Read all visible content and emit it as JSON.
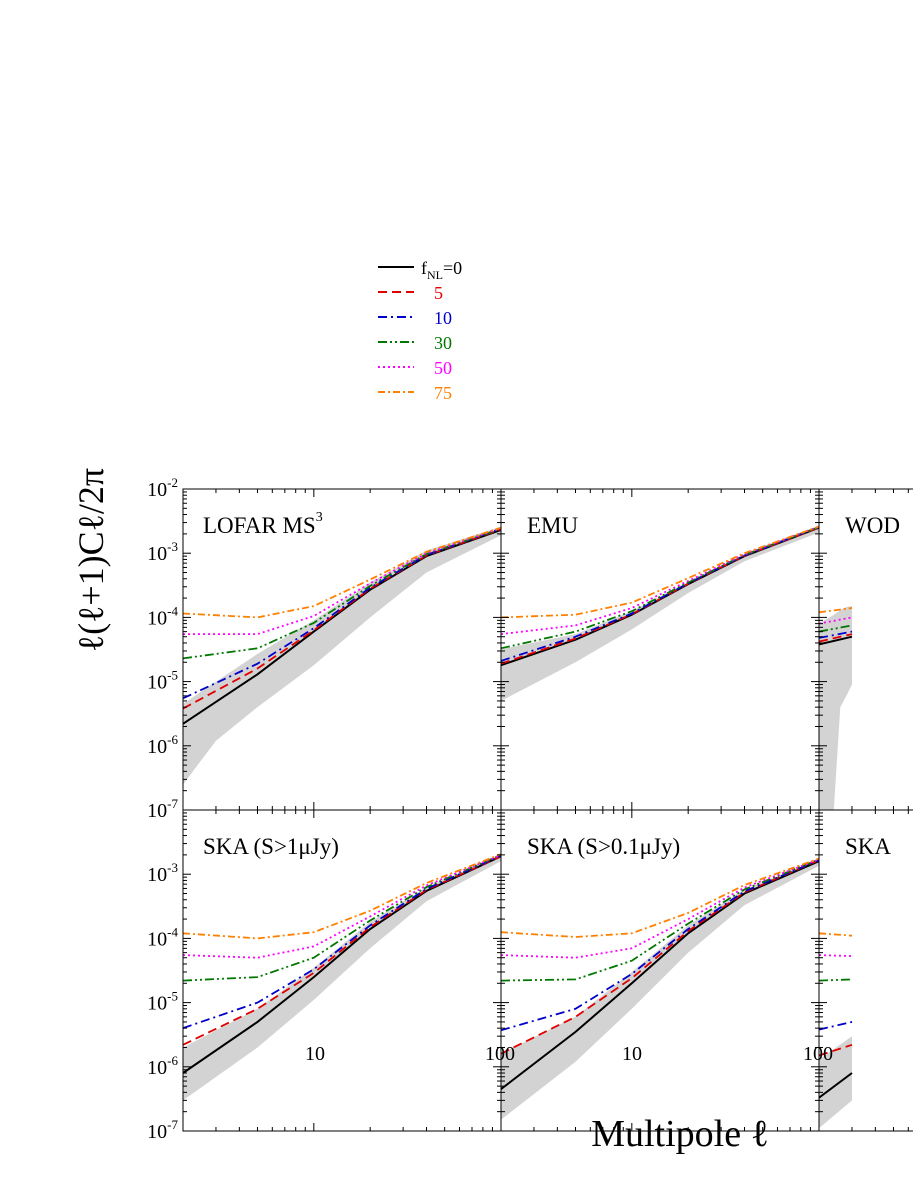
{
  "chart_data": {
    "type": "line",
    "xscale": "log",
    "yscale": "log",
    "xlim": [
      2,
      100
    ],
    "ylim": [
      1e-07,
      0.01
    ],
    "xlabel": "Multipole ℓ",
    "ylabel": "ℓ(ℓ+1)Cℓ/2π",
    "x_tick_labels": [
      "10",
      "100"
    ],
    "y_tick_labels": [
      {
        "base": "10",
        "exp": "-7"
      },
      {
        "base": "10",
        "exp": "-6"
      },
      {
        "base": "10",
        "exp": "-5"
      },
      {
        "base": "10",
        "exp": "-4"
      },
      {
        "base": "10",
        "exp": "-3"
      },
      {
        "base": "10",
        "exp": "-2"
      }
    ],
    "colors": {
      "fNL_0": "#000000",
      "fNL_5": "#e00000",
      "fNL_10": "#0000cc",
      "fNL_30": "#007700",
      "fNL_50": "#ff00ff",
      "fNL_75": "#ff8000",
      "band": "#d3d3d3"
    },
    "legend": {
      "prefix": "f",
      "prefix_sub": "NL",
      "entries": [
        {
          "key": "fNL_0",
          "label": "=0",
          "style": "solid"
        },
        {
          "key": "fNL_5",
          "label": "5",
          "style": "dashed"
        },
        {
          "key": "fNL_10",
          "label": "10",
          "style": "dashdot"
        },
        {
          "key": "fNL_30",
          "label": "30",
          "style": "dashdotdot"
        },
        {
          "key": "fNL_50",
          "label": "50",
          "style": "dotted"
        },
        {
          "key": "fNL_75",
          "label": "75",
          "style": "dashdot2"
        }
      ]
    },
    "panels": [
      {
        "id": "lofar",
        "title": "LOFAR MS",
        "title_sup": "3",
        "row": 0,
        "col": 0,
        "series": [
          {
            "key": "fNL_0",
            "l": [
              2,
              5,
              10,
              20,
              40,
              100
            ],
            "y": [
              2.2e-06,
              1.3e-05,
              6e-05,
              0.00027,
              0.0009,
              0.0023
            ]
          },
          {
            "key": "fNL_5",
            "l": [
              2,
              5,
              10,
              20,
              40,
              100
            ],
            "y": [
              3.8e-06,
              1.6e-05,
              6.3e-05,
              0.00028,
              0.00092,
              0.00235
            ]
          },
          {
            "key": "fNL_10",
            "l": [
              2,
              5,
              10,
              20,
              40,
              100
            ],
            "y": [
              5.5e-06,
              1.9e-05,
              6.8e-05,
              0.00029,
              0.00094,
              0.0024
            ]
          },
          {
            "key": "fNL_30",
            "l": [
              2,
              5,
              10,
              20,
              40,
              100
            ],
            "y": [
              2.3e-05,
              3.3e-05,
              8.2e-05,
              0.00031,
              0.00097,
              0.0024
            ]
          },
          {
            "key": "fNL_50",
            "l": [
              2,
              5,
              10,
              20,
              40,
              100
            ],
            "y": [
              5.5e-05,
              5.5e-05,
              0.000105,
              0.00034,
              0.001,
              0.00245
            ]
          },
          {
            "key": "fNL_75",
            "l": [
              2,
              5,
              10,
              20,
              40,
              100
            ],
            "y": [
              0.000115,
              0.0001,
              0.00015,
              0.00039,
              0.00105,
              0.0025
            ]
          }
        ],
        "band": {
          "l": [
            2,
            3,
            5,
            10,
            20,
            40,
            100
          ],
          "upper": [
            4.5e-06,
            1e-05,
            2.7e-05,
            9e-05,
            0.00035,
            0.0011,
            0.0026
          ],
          "lower": [
            2.5e-07,
            1.2e-06,
            4e-06,
            1.8e-05,
            0.0001,
            0.0005,
            0.0019
          ]
        }
      },
      {
        "id": "emu",
        "title": "EMU",
        "row": 0,
        "col": 1,
        "series": [
          {
            "key": "fNL_0",
            "l": [
              2,
              5,
              10,
              20,
              40,
              100
            ],
            "y": [
              1.8e-05,
              4.5e-05,
              0.00011,
              0.00033,
              0.0009,
              0.0025
            ]
          },
          {
            "key": "fNL_5",
            "l": [
              2,
              5,
              10,
              20,
              40,
              100
            ],
            "y": [
              1.9e-05,
              4.7e-05,
              0.000112,
              0.000335,
              0.00091,
              0.0025
            ]
          },
          {
            "key": "fNL_10",
            "l": [
              2,
              5,
              10,
              20,
              40,
              100
            ],
            "y": [
              2.1e-05,
              5e-05,
              0.000115,
              0.00034,
              0.00092,
              0.00255
            ]
          },
          {
            "key": "fNL_30",
            "l": [
              2,
              5,
              10,
              20,
              40,
              100
            ],
            "y": [
              3.3e-05,
              6e-05,
              0.000125,
              0.00035,
              0.00094,
              0.00255
            ]
          },
          {
            "key": "fNL_50",
            "l": [
              2,
              5,
              10,
              20,
              40,
              100
            ],
            "y": [
              5.5e-05,
              7.5e-05,
              0.00014,
              0.00037,
              0.00096,
              0.0026
            ]
          },
          {
            "key": "fNL_75",
            "l": [
              2,
              5,
              10,
              20,
              40,
              100
            ],
            "y": [
              0.0001,
              0.00011,
              0.00017,
              0.00041,
              0.001,
              0.0026
            ]
          }
        ],
        "band": {
          "l": [
            2,
            5,
            10,
            20,
            40,
            100
          ],
          "upper": [
            3.2e-05,
            5.5e-05,
            0.000125,
            0.00036,
            0.00098,
            0.0027
          ],
          "lower": [
            5e-06,
            2e-05,
            6.5e-05,
            0.00024,
            0.00075,
            0.0021
          ]
        }
      },
      {
        "id": "wodfs",
        "title": "WOD",
        "row": 0,
        "col": 2,
        "series": [
          {
            "key": "fNL_0",
            "l": [
              2,
              3
            ],
            "y": [
              3.8e-05,
              5e-05
            ]
          },
          {
            "key": "fNL_5",
            "l": [
              2,
              3
            ],
            "y": [
              4.2e-05,
              5.5e-05
            ]
          },
          {
            "key": "fNL_10",
            "l": [
              2,
              3
            ],
            "y": [
              4.8e-05,
              6e-05
            ]
          },
          {
            "key": "fNL_30",
            "l": [
              2,
              3
            ],
            "y": [
              6e-05,
              7.5e-05
            ]
          },
          {
            "key": "fNL_50",
            "l": [
              2,
              3
            ],
            "y": [
              8e-05,
              0.0001
            ]
          },
          {
            "key": "fNL_75",
            "l": [
              2,
              3
            ],
            "y": [
              0.00012,
              0.00014
            ]
          }
        ],
        "band": {
          "l": [
            2,
            2.4,
            2.6,
            2.8,
            3
          ],
          "upper": [
            8e-05,
            0.00011,
            0.00013,
            0.000145,
            0.00015
          ],
          "lower": [
            1e-07,
            1e-07,
            4e-06,
            6e-06,
            9e-06
          ]
        }
      },
      {
        "id": "ska1",
        "title": "SKA (S>1μJy)",
        "row": 1,
        "col": 0,
        "series": [
          {
            "key": "fNL_0",
            "l": [
              2,
              5,
              10,
              20,
              40,
              100
            ],
            "y": [
              8e-07,
              5e-06,
              2.5e-05,
              0.00014,
              0.00055,
              0.0019
            ]
          },
          {
            "key": "fNL_5",
            "l": [
              2,
              5,
              10,
              20,
              40,
              100
            ],
            "y": [
              2.2e-06,
              8e-06,
              2.9e-05,
              0.00015,
              0.00057,
              0.0019
            ]
          },
          {
            "key": "fNL_10",
            "l": [
              2,
              5,
              10,
              20,
              40,
              100
            ],
            "y": [
              4e-06,
              1e-05,
              3.3e-05,
              0.00016,
              0.00059,
              0.00195
            ]
          },
          {
            "key": "fNL_30",
            "l": [
              2,
              5,
              10,
              20,
              40,
              100
            ],
            "y": [
              2.2e-05,
              2.5e-05,
              5e-05,
              0.00019,
              0.00063,
              0.002
            ]
          },
          {
            "key": "fNL_50",
            "l": [
              2,
              5,
              10,
              20,
              40,
              100
            ],
            "y": [
              5.5e-05,
              5e-05,
              7.5e-05,
              0.00022,
              0.00067,
              0.002
            ]
          },
          {
            "key": "fNL_75",
            "l": [
              2,
              5,
              10,
              20,
              40,
              100
            ],
            "y": [
              0.00012,
              0.0001,
              0.000125,
              0.00027,
              0.00073,
              0.00205
            ]
          }
        ],
        "band": {
          "l": [
            2,
            5,
            10,
            20,
            40,
            100
          ],
          "upper": [
            2e-06,
            8e-06,
            3.5e-05,
            0.00018,
            0.00063,
            0.002
          ],
          "lower": [
            3e-07,
            2e-06,
            1.1e-05,
            7e-05,
            0.00038,
            0.0016
          ]
        }
      },
      {
        "id": "ska01",
        "title": "SKA (S>0.1μJy)",
        "row": 1,
        "col": 1,
        "series": [
          {
            "key": "fNL_0",
            "l": [
              2,
              5,
              10,
              20,
              40,
              100
            ],
            "y": [
              4.5e-07,
              3.5e-06,
              2e-05,
              0.00012,
              0.0005,
              0.0016
            ]
          },
          {
            "key": "fNL_5",
            "l": [
              2,
              5,
              10,
              20,
              40,
              100
            ],
            "y": [
              1.6e-06,
              6e-06,
              2.4e-05,
              0.00013,
              0.00052,
              0.00165
            ]
          },
          {
            "key": "fNL_10",
            "l": [
              2,
              5,
              10,
              20,
              40,
              100
            ],
            "y": [
              3.7e-06,
              8e-06,
              2.8e-05,
              0.00014,
              0.00054,
              0.00165
            ]
          },
          {
            "key": "fNL_30",
            "l": [
              2,
              5,
              10,
              20,
              40,
              100
            ],
            "y": [
              2.2e-05,
              2.3e-05,
              4.5e-05,
              0.00017,
              0.00058,
              0.0017
            ]
          },
          {
            "key": "fNL_50",
            "l": [
              2,
              5,
              10,
              20,
              40,
              100
            ],
            "y": [
              5.5e-05,
              5e-05,
              7e-05,
              0.0002,
              0.00062,
              0.0017
            ]
          },
          {
            "key": "fNL_75",
            "l": [
              2,
              5,
              10,
              20,
              40,
              100
            ],
            "y": [
              0.000125,
              0.000105,
              0.00012,
              0.00025,
              0.00068,
              0.00175
            ]
          }
        ],
        "band": {
          "l": [
            2,
            5,
            10,
            20,
            40,
            100
          ],
          "upper": [
            1.6e-06,
            6e-06,
            3e-05,
            0.00016,
            0.00058,
            0.0017
          ],
          "lower": [
            1.5e-07,
            1.2e-06,
            8e-06,
            6e-05,
            0.00033,
            0.00135
          ]
        }
      },
      {
        "id": "ska3",
        "title": "SKA",
        "row": 1,
        "col": 2,
        "series": [
          {
            "key": "fNL_0",
            "l": [
              2,
              3
            ],
            "y": [
              3.3e-07,
              8e-07
            ]
          },
          {
            "key": "fNL_5",
            "l": [
              2,
              3
            ],
            "y": [
              1.5e-06,
              2.2e-06
            ]
          },
          {
            "key": "fNL_10",
            "l": [
              2,
              3
            ],
            "y": [
              3.8e-06,
              5e-06
            ]
          },
          {
            "key": "fNL_30",
            "l": [
              2,
              3
            ],
            "y": [
              2.2e-05,
              2.3e-05
            ]
          },
          {
            "key": "fNL_50",
            "l": [
              2,
              3
            ],
            "y": [
              5.5e-05,
              5.3e-05
            ]
          },
          {
            "key": "fNL_75",
            "l": [
              2,
              3
            ],
            "y": [
              0.00012,
              0.00011
            ]
          }
        ],
        "band": {
          "l": [
            2,
            3
          ],
          "upper": [
            1.3e-06,
            3e-06
          ],
          "lower": [
            1.1e-07,
            3e-07
          ]
        }
      }
    ]
  }
}
